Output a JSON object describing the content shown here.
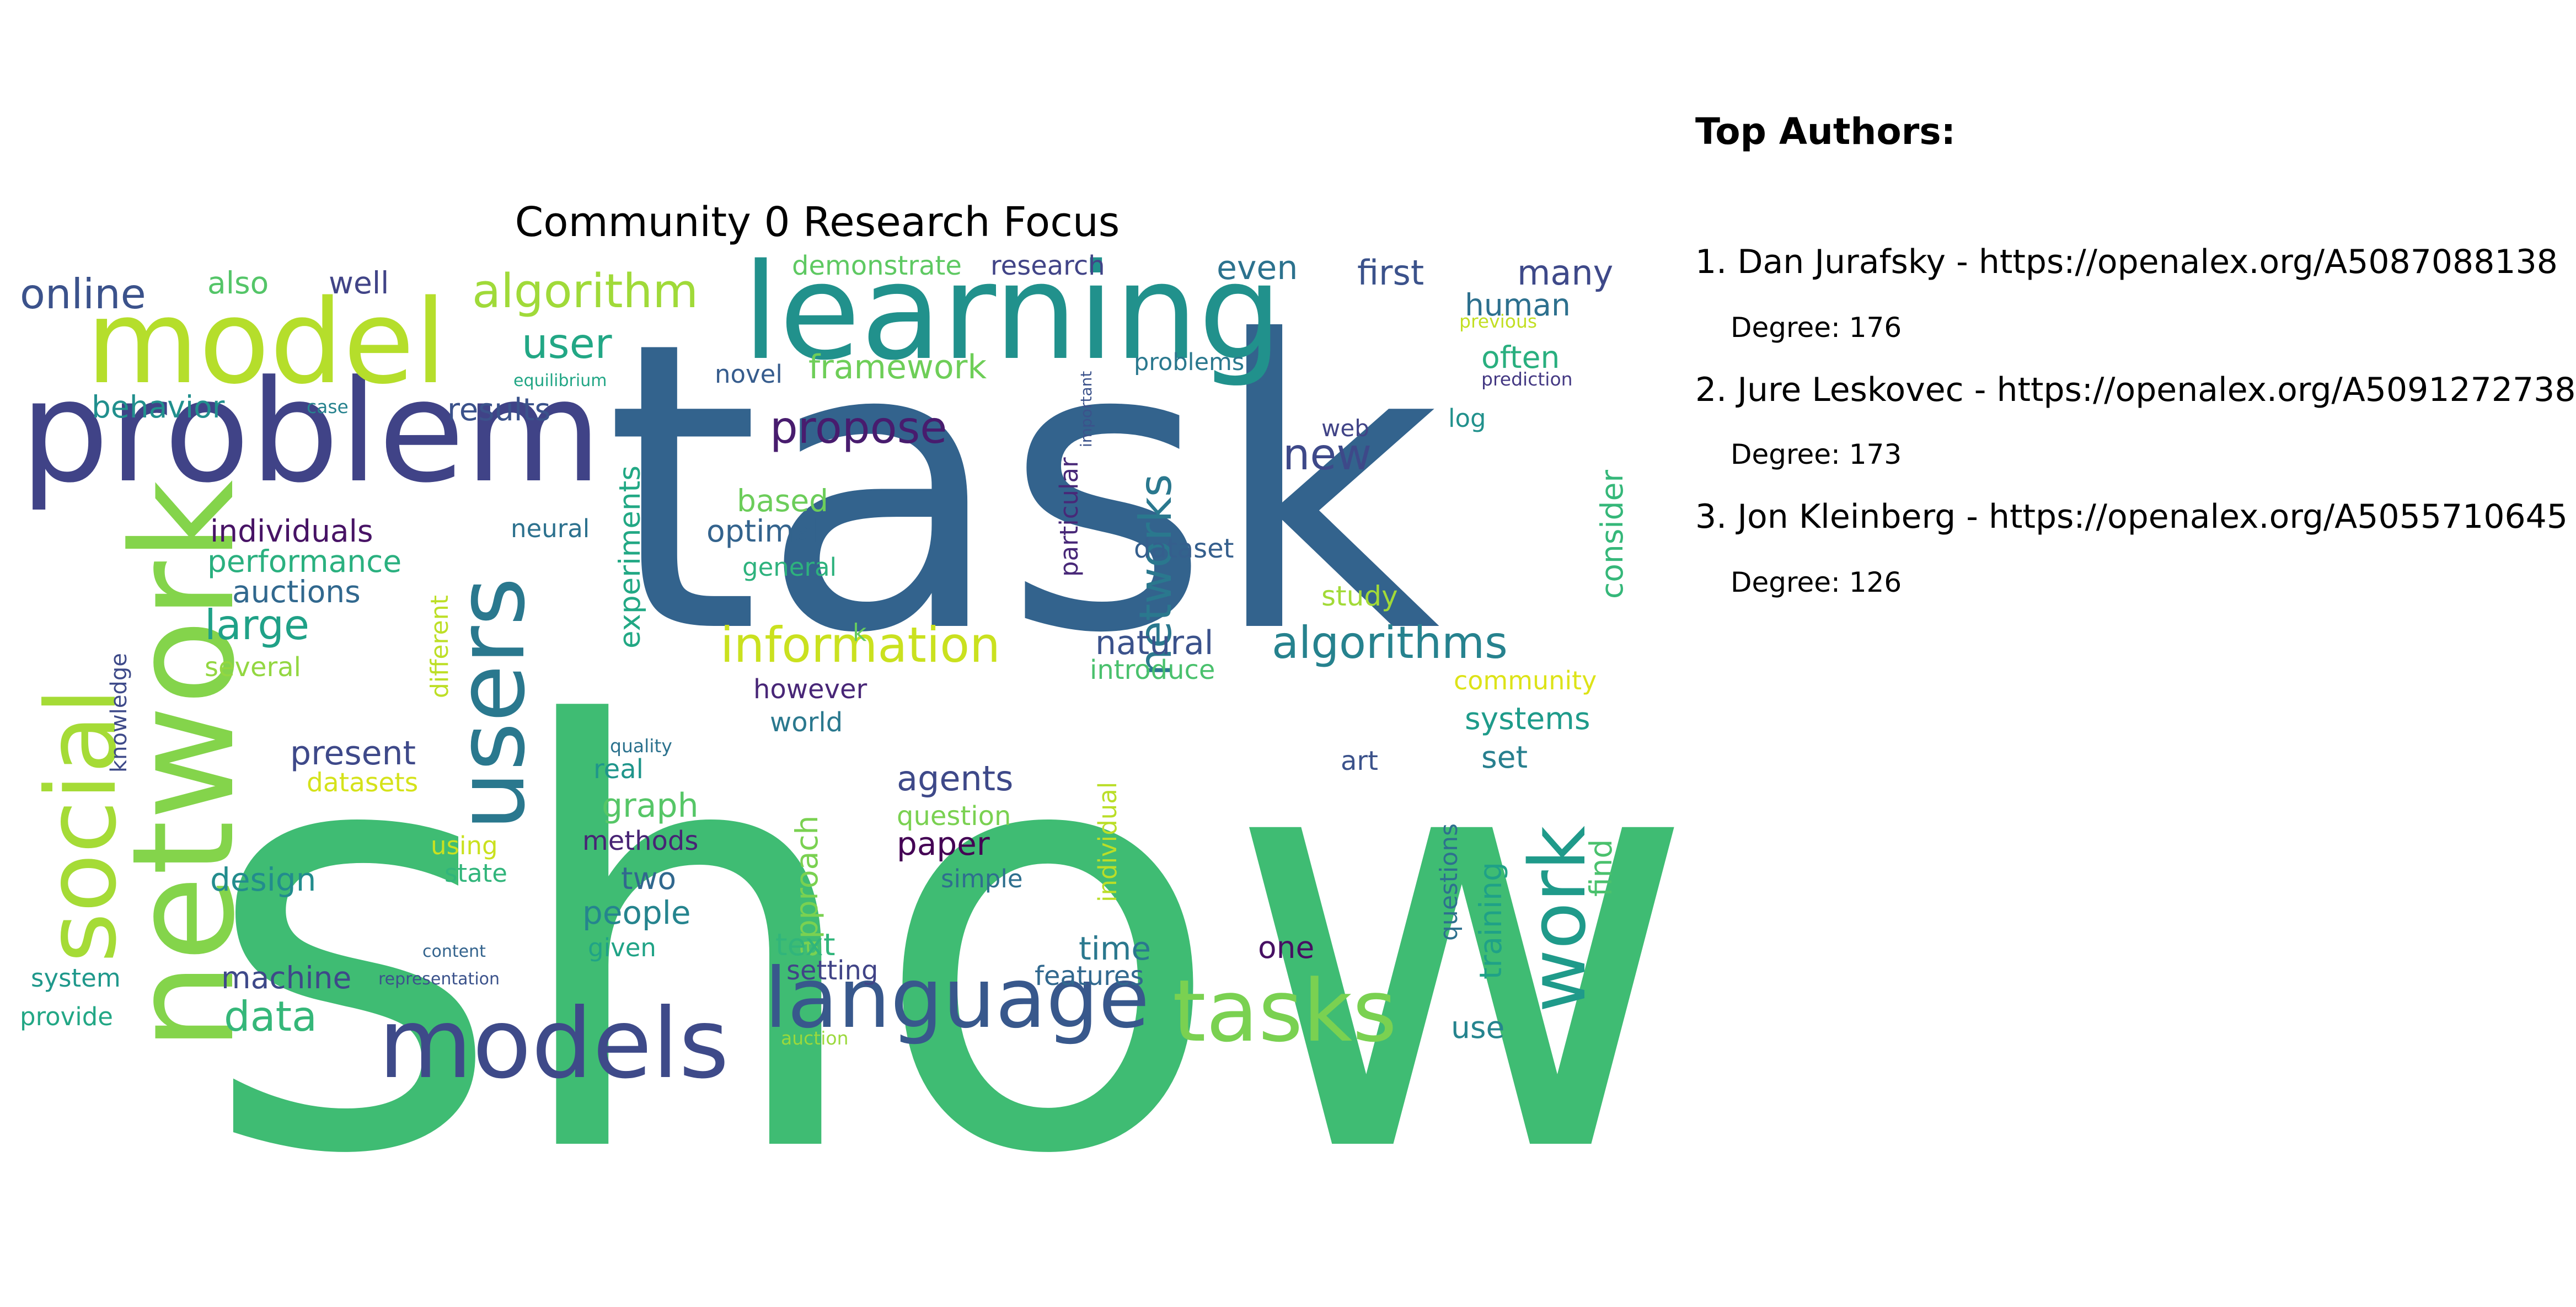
{
  "title": "Community 0 Research Focus",
  "wordcloud": [
    {
      "text": "show",
      "color": "#3fbc73"
    },
    {
      "text": "task",
      "color": "#33638d"
    },
    {
      "text": "learning",
      "color": "#21918c"
    },
    {
      "text": "problem",
      "color": "#404387"
    },
    {
      "text": "model",
      "color": "#b5de2b"
    },
    {
      "text": "network",
      "color": "#84d44b"
    },
    {
      "text": "social",
      "color": "#a5db36"
    },
    {
      "text": "users",
      "color": "#2a788e"
    },
    {
      "text": "models",
      "color": "#3e4a89"
    },
    {
      "text": "language",
      "color": "#38588c"
    },
    {
      "text": "tasks",
      "color": "#7ad151"
    },
    {
      "text": "work",
      "color": "#1f9a8a"
    },
    {
      "text": "algorithm",
      "color": "#a0da39"
    },
    {
      "text": "information",
      "color": "#cae11f"
    },
    {
      "text": "algorithms",
      "color": "#26828e"
    },
    {
      "text": "online",
      "color": "#3b528b"
    },
    {
      "text": "propose",
      "color": "#481c6e"
    },
    {
      "text": "networks",
      "color": "#2a788e"
    },
    {
      "text": "new",
      "color": "#3e4989"
    },
    {
      "text": "user",
      "color": "#22a785"
    },
    {
      "text": "large",
      "color": "#1fa187"
    },
    {
      "text": "data",
      "color": "#35b779"
    },
    {
      "text": "also",
      "color": "#54c568"
    },
    {
      "text": "well",
      "color": "#414487"
    },
    {
      "text": "first",
      "color": "#3b528b"
    },
    {
      "text": "many",
      "color": "#3e4989"
    },
    {
      "text": "even",
      "color": "#2c728e"
    },
    {
      "text": "demonstrate",
      "color": "#5ec962"
    },
    {
      "text": "research",
      "color": "#414487"
    },
    {
      "text": "human",
      "color": "#2d708e"
    },
    {
      "text": "often",
      "color": "#29af7f"
    },
    {
      "text": "framework",
      "color": "#6ece58"
    },
    {
      "text": "novel",
      "color": "#365c8d"
    },
    {
      "text": "problems",
      "color": "#2a788e"
    },
    {
      "text": "results",
      "color": "#3b528b"
    },
    {
      "text": "behavior",
      "color": "#218f8d"
    },
    {
      "text": "case",
      "color": "#26828e"
    },
    {
      "text": "equilibrium",
      "color": "#21a685"
    },
    {
      "text": "individuals",
      "color": "#471365"
    },
    {
      "text": "performance",
      "color": "#2ab07f"
    },
    {
      "text": "auctions",
      "color": "#31688e"
    },
    {
      "text": "neural",
      "color": "#2c718e"
    },
    {
      "text": "optimal",
      "color": "#33638d"
    },
    {
      "text": "based",
      "color": "#6ccd5a"
    },
    {
      "text": "experiments",
      "color": "#22a884"
    },
    {
      "text": "general",
      "color": "#2db27d"
    },
    {
      "text": "dataset",
      "color": "#355f8d"
    },
    {
      "text": "particular",
      "color": "#482878"
    },
    {
      "text": "important",
      "color": "#3b528b"
    },
    {
      "text": "log",
      "color": "#21918c"
    },
    {
      "text": "study",
      "color": "#a2da37"
    },
    {
      "text": "consider",
      "color": "#35b779"
    },
    {
      "text": "previous",
      "color": "#c2df23"
    },
    {
      "text": "prediction",
      "color": "#443983"
    },
    {
      "text": "natural",
      "color": "#3b528b"
    },
    {
      "text": "introduce",
      "color": "#4ac16d"
    },
    {
      "text": "community",
      "color": "#dde318"
    },
    {
      "text": "several",
      "color": "#93d741"
    },
    {
      "text": "different",
      "color": "#bddf26"
    },
    {
      "text": "knowledge",
      "color": "#3e4a89"
    },
    {
      "text": "however",
      "color": "#482677"
    },
    {
      "text": "world",
      "color": "#2a788e"
    },
    {
      "text": "k",
      "color": "#65cb5e"
    },
    {
      "text": "systems",
      "color": "#1e9b8a"
    },
    {
      "text": "set",
      "color": "#277f8e"
    },
    {
      "text": "art",
      "color": "#3b528b"
    },
    {
      "text": "present",
      "color": "#3e4989"
    },
    {
      "text": "datasets",
      "color": "#d5e21a"
    },
    {
      "text": "quality",
      "color": "#2c728e"
    },
    {
      "text": "real",
      "color": "#1f958b"
    },
    {
      "text": "graph",
      "color": "#56c667"
    },
    {
      "text": "agents",
      "color": "#3e4989"
    },
    {
      "text": "question",
      "color": "#7ad151"
    },
    {
      "text": "paper",
      "color": "#440154"
    },
    {
      "text": "approach",
      "color": "#7ad151"
    },
    {
      "text": "individual",
      "color": "#bade28"
    },
    {
      "text": "questions",
      "color": "#2d708e"
    },
    {
      "text": "training",
      "color": "#1fa187"
    },
    {
      "text": "find",
      "color": "#4ac16d"
    },
    {
      "text": "methods",
      "color": "#482475"
    },
    {
      "text": "design",
      "color": "#228c8d"
    },
    {
      "text": "using",
      "color": "#cae11f"
    },
    {
      "text": "state",
      "color": "#31b57b"
    },
    {
      "text": "two",
      "color": "#31688e"
    },
    {
      "text": "people",
      "color": "#25848e"
    },
    {
      "text": "simple",
      "color": "#2e6f8e"
    },
    {
      "text": "time",
      "color": "#2a788e"
    },
    {
      "text": "one",
      "color": "#471063"
    },
    {
      "text": "text",
      "color": "#31b57b"
    },
    {
      "text": "given",
      "color": "#20a386"
    },
    {
      "text": "content",
      "color": "#33638d"
    },
    {
      "text": "machine",
      "color": "#3e4989"
    },
    {
      "text": "setting",
      "color": "#414487"
    },
    {
      "text": "features",
      "color": "#31688e"
    },
    {
      "text": "use",
      "color": "#25848e"
    },
    {
      "text": "system",
      "color": "#1f988b"
    },
    {
      "text": "representation",
      "color": "#3b528b"
    },
    {
      "text": "provide",
      "color": "#22a785"
    },
    {
      "text": "auction",
      "color": "#9bd93c"
    },
    {
      "text": "web",
      "color": "#414487"
    }
  ],
  "authors": {
    "heading": "Top Authors:",
    "items": [
      {
        "line": "1. Dan Jurafsky - https://openalex.org/A5087088138",
        "degree": "Degree: 176"
      },
      {
        "line": "2. Jure Leskovec - https://openalex.org/A5091272738",
        "degree": "Degree: 173"
      },
      {
        "line": "3. Jon Kleinberg - https://openalex.org/A5055710645",
        "degree": "Degree: 126"
      }
    ]
  }
}
